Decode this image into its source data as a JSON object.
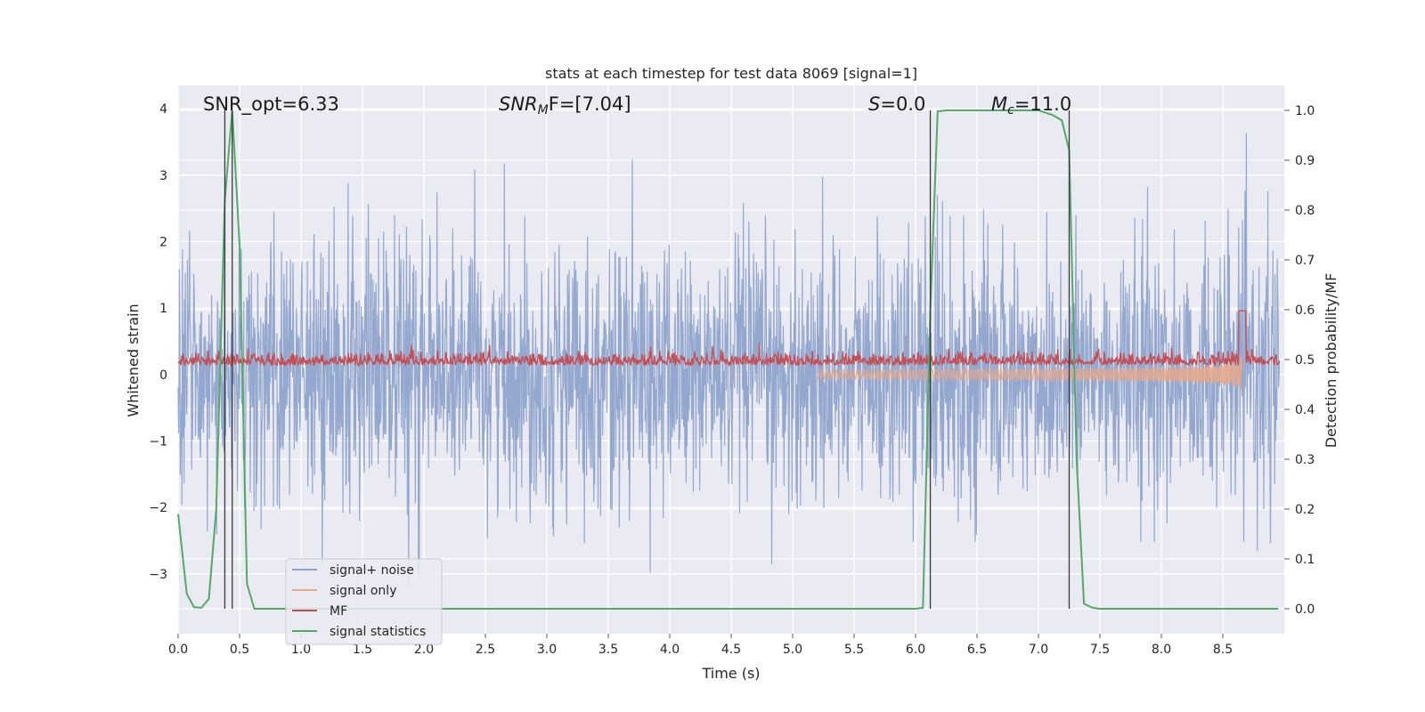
{
  "chart_data": {
    "type": "line",
    "title": "stats at each timestep for test data 8069 [signal=1]",
    "xlabel": "Time (s)",
    "ylabel_left": "Whitened strain",
    "ylabel_right": "Detection probability/MF",
    "xlim": [
      0.0,
      9.0
    ],
    "ylim_left": [
      -3.9,
      4.35
    ],
    "ylim_right": [
      -0.05,
      1.05
    ],
    "xticks": [
      "0.0",
      "0.5",
      "1.0",
      "1.5",
      "2.0",
      "2.5",
      "3.0",
      "3.5",
      "4.0",
      "4.5",
      "5.0",
      "5.5",
      "6.0",
      "6.5",
      "7.0",
      "7.5",
      "8.0",
      "8.5"
    ],
    "yticks_left": [
      "4",
      "3",
      "2",
      "1",
      "0",
      "−1",
      "−2",
      "−3"
    ],
    "yticks_right": [
      "1.0",
      "0.9",
      "0.8",
      "0.7",
      "0.6",
      "0.5",
      "0.4",
      "0.3",
      "0.2",
      "0.1",
      "0.0"
    ],
    "grid": true,
    "legend_placement": "lower-left",
    "annotations": [
      {
        "id": "snr-opt",
        "text": "SNR_opt=6.33"
      },
      {
        "id": "snr-mf-prefix",
        "text": "SNR"
      },
      {
        "id": "snr-mf-sub",
        "text": "M"
      },
      {
        "id": "snr-mf-suffix",
        "text": "F=[7.04]"
      },
      {
        "id": "s-var",
        "text": "S"
      },
      {
        "id": "s-val",
        "text": "=0.0"
      },
      {
        "id": "mc-var",
        "text": "M"
      },
      {
        "id": "mc-sub",
        "text": "c"
      },
      {
        "id": "mc-val",
        "text": "=11.0"
      }
    ],
    "vertical_lines_x": [
      0.38,
      0.44,
      6.12,
      7.25
    ],
    "series": [
      {
        "name": "signal+ noise",
        "color": "#8fa4cc",
        "description_values": "noise amplitude roughly +/-1.5, peaks near +4 and -3.6"
      },
      {
        "name": "signal only",
        "color": "#e6a88a",
        "chirp_end_x": 8.66
      },
      {
        "name": "MF",
        "color": "#c44e52"
      },
      {
        "name": "signal statistics",
        "color": "#55a868",
        "x": [
          0.0,
          0.07,
          0.13,
          0.19,
          0.25,
          0.31,
          0.38,
          0.44,
          0.5,
          0.56,
          0.62,
          0.7,
          1.0,
          2.0,
          3.0,
          4.0,
          5.0,
          5.5,
          6.0,
          6.06,
          6.12,
          6.18,
          6.25,
          6.5,
          7.0,
          7.12,
          7.19,
          7.25,
          7.31,
          7.37,
          7.44,
          7.5,
          8.0,
          8.5,
          8.95
        ],
        "y": [
          0.19,
          0.03,
          0.003,
          0.002,
          0.02,
          0.2,
          0.82,
          1.0,
          0.73,
          0.05,
          0.0,
          0.0,
          0.0,
          0.0,
          0.0,
          0.0,
          0.0,
          0.0,
          0.0,
          0.002,
          0.6,
          0.998,
          1.0,
          1.0,
          1.0,
          0.99,
          0.98,
          0.92,
          0.3,
          0.01,
          0.002,
          0.0,
          0.0,
          0.0,
          0.0
        ]
      }
    ]
  }
}
